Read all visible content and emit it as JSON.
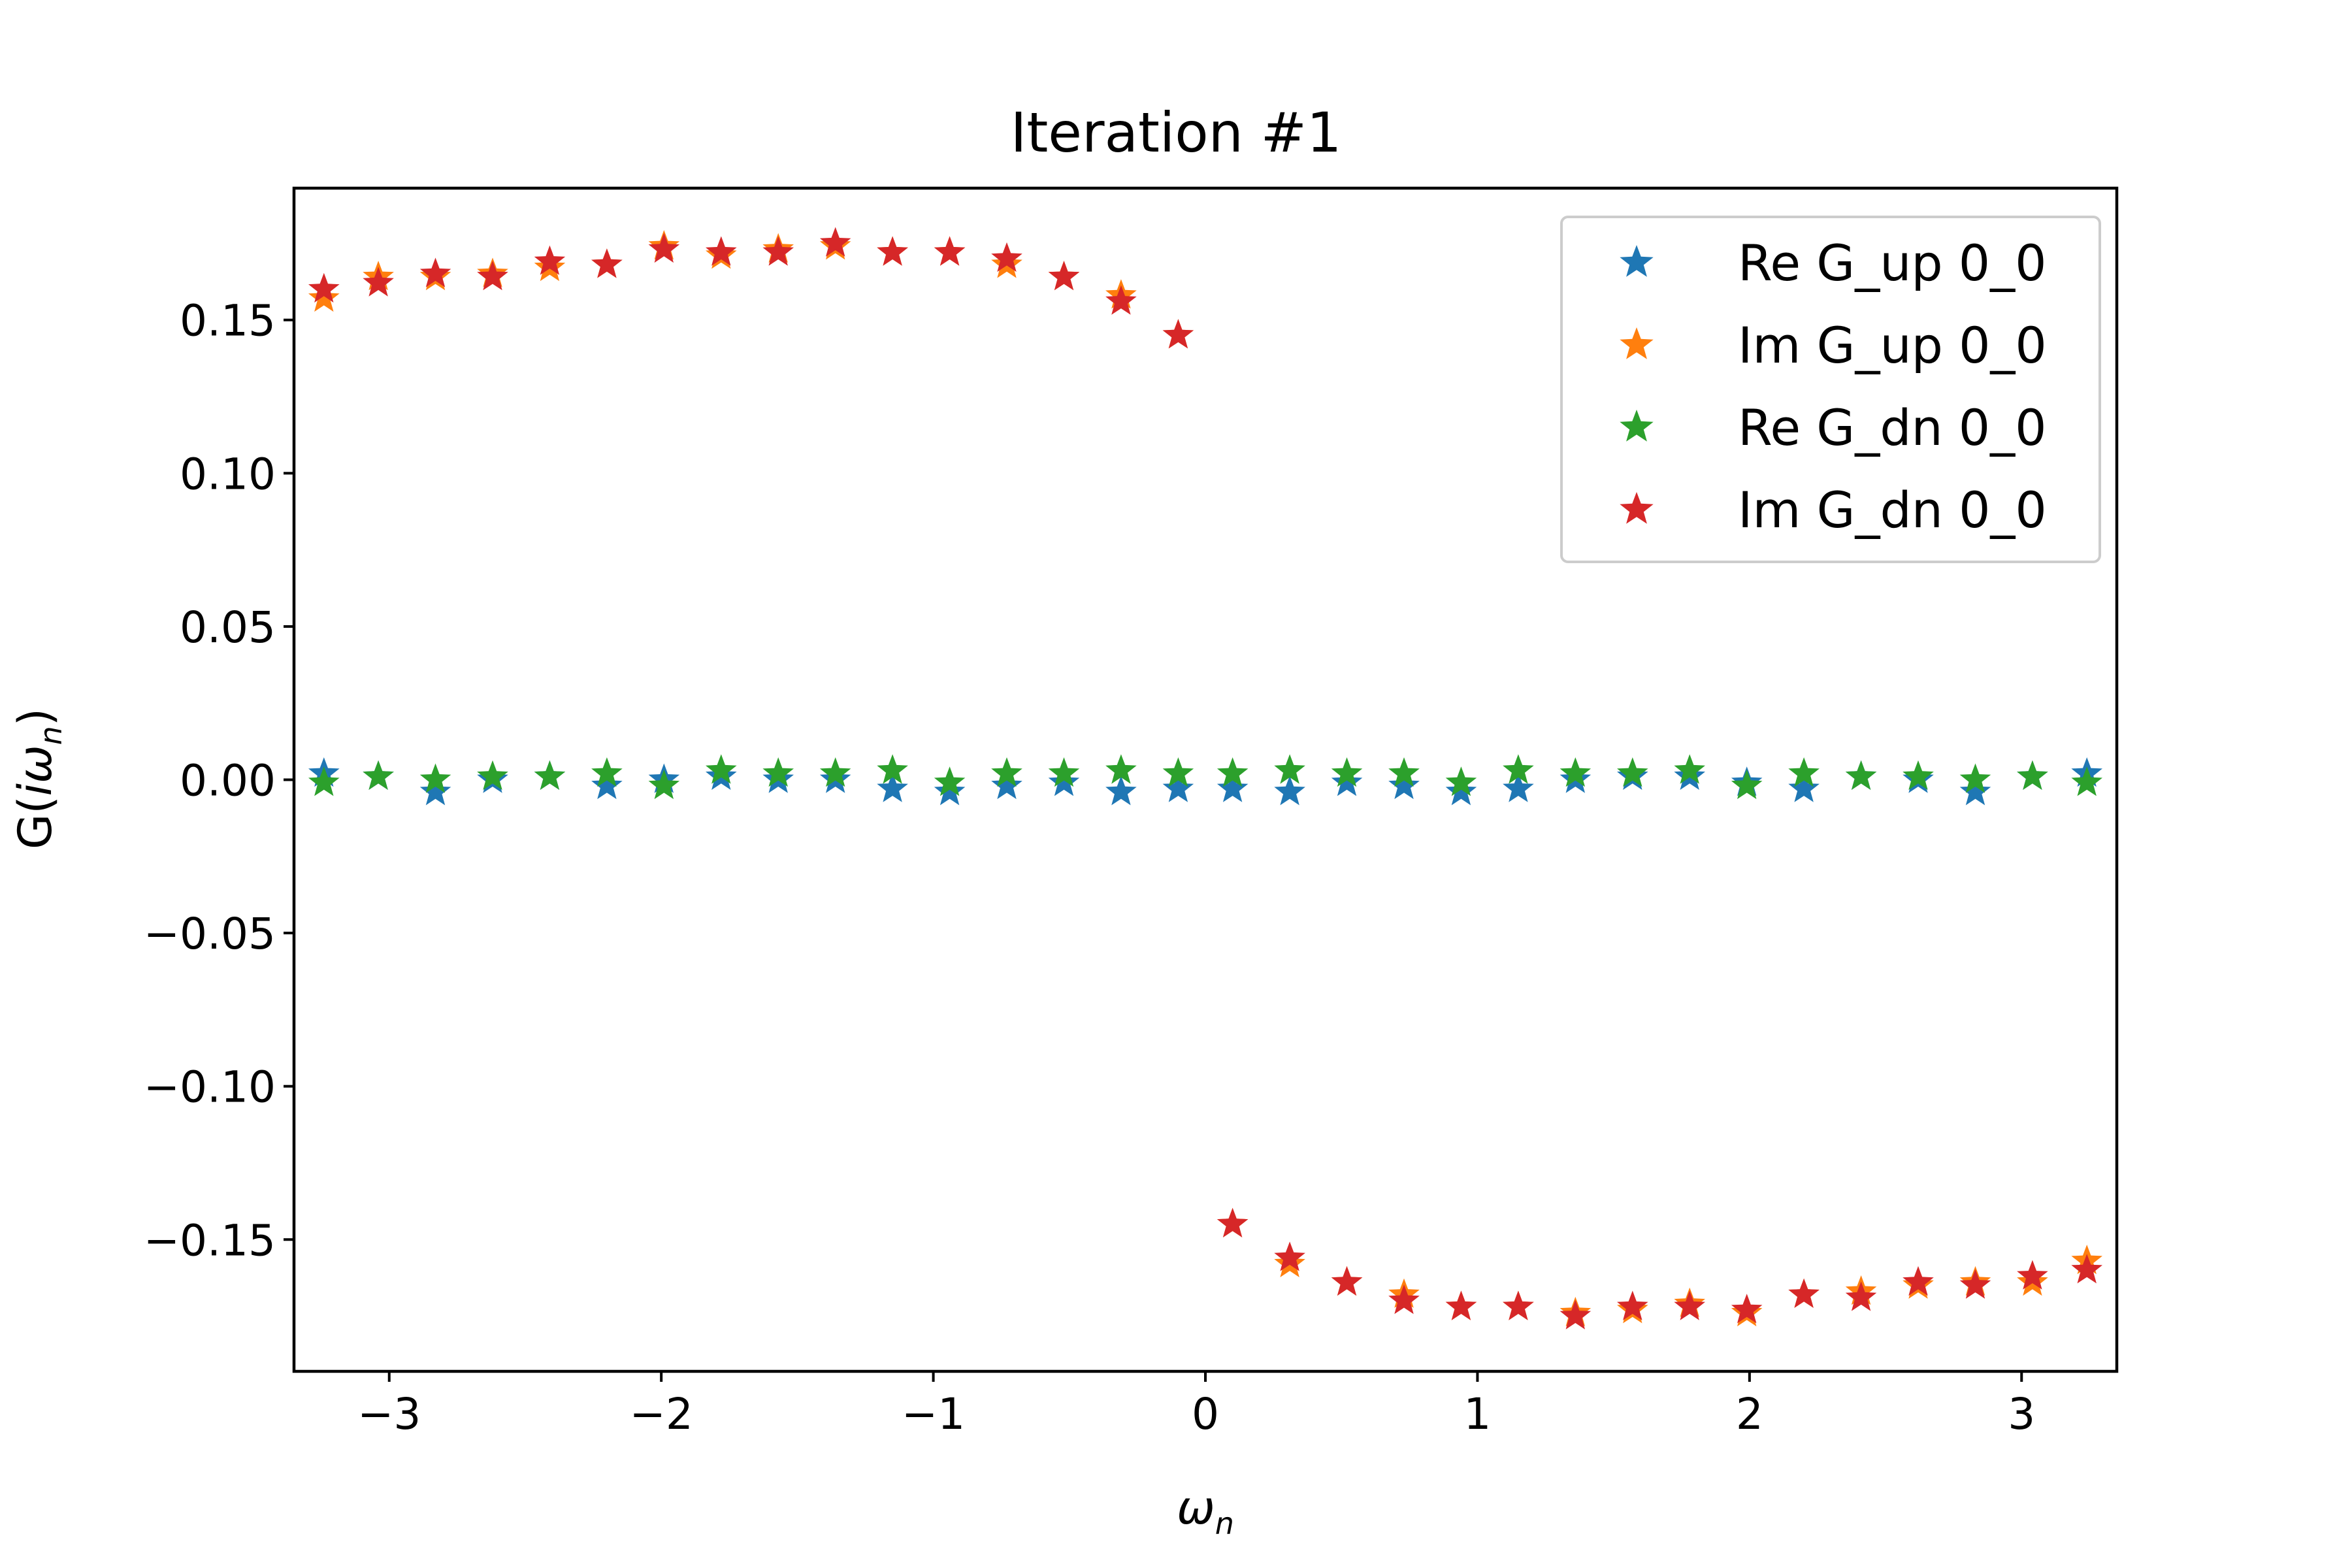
{
  "chart_data": {
    "type": "scatter",
    "title": "Iteration #1",
    "xlabel": "ω",
    "xlabel_sub": "n",
    "ylabel_prefix": "G(",
    "ylabel_mid": "iω",
    "ylabel_sub": "n",
    "ylabel_suffix": ")",
    "xlim": [
      -3.35,
      3.35
    ],
    "ylim": [
      -0.193,
      0.193
    ],
    "xticks": [
      -3,
      -2,
      -1,
      0,
      1,
      2,
      3
    ],
    "xtick_labels": [
      "−3",
      "−2",
      "−1",
      "0",
      "1",
      "2",
      "3"
    ],
    "yticks": [
      -0.15,
      -0.1,
      -0.05,
      0.0,
      0.05,
      0.1,
      0.15
    ],
    "ytick_labels": [
      "−0.15",
      "−0.10",
      "−0.05",
      "0.00",
      "0.05",
      "0.10",
      "0.15"
    ],
    "legend_position": "top-right",
    "marker": "star",
    "x": [
      -3.24,
      -3.04,
      -2.83,
      -2.62,
      -2.41,
      -2.2,
      -1.99,
      -1.78,
      -1.57,
      -1.36,
      -1.15,
      -0.94,
      -0.73,
      -0.52,
      -0.31,
      -0.1,
      0.1,
      0.31,
      0.52,
      0.73,
      0.94,
      1.15,
      1.36,
      1.57,
      1.78,
      1.99,
      2.2,
      2.41,
      2.62,
      2.83,
      3.04,
      3.24
    ],
    "series": [
      {
        "name": "Re G_up 0_0",
        "color": "#1f77b4",
        "values": [
          0.002,
          0.001,
          -0.004,
          0.0,
          0.001,
          -0.002,
          0.0,
          0.001,
          0.0,
          0.0,
          -0.003,
          -0.004,
          -0.002,
          -0.001,
          -0.004,
          -0.003,
          -0.003,
          -0.004,
          -0.001,
          -0.002,
          -0.004,
          -0.003,
          0.0,
          0.001,
          0.001,
          -0.001,
          -0.003,
          0.001,
          0.0,
          -0.004,
          0.001,
          0.002
        ]
      },
      {
        "name": "Im G_up 0_0",
        "color": "#ff7f0e",
        "values": [
          0.157,
          0.164,
          0.164,
          0.165,
          0.167,
          0.168,
          0.174,
          0.171,
          0.173,
          0.174,
          0.172,
          0.172,
          0.168,
          0.164,
          0.158,
          0.145,
          -0.145,
          -0.158,
          -0.164,
          -0.168,
          -0.172,
          -0.172,
          -0.174,
          -0.173,
          -0.171,
          -0.174,
          -0.168,
          -0.167,
          -0.165,
          -0.164,
          -0.164,
          -0.157
        ]
      },
      {
        "name": "Re G_dn 0_0",
        "color": "#2ca02c",
        "values": [
          -0.001,
          0.001,
          0.0,
          0.001,
          0.001,
          0.002,
          -0.002,
          0.003,
          0.002,
          0.002,
          0.003,
          -0.001,
          0.002,
          0.002,
          0.003,
          0.002,
          0.002,
          0.003,
          0.002,
          0.002,
          -0.001,
          0.003,
          0.002,
          0.002,
          0.003,
          -0.002,
          0.002,
          0.001,
          0.001,
          0.0,
          0.001,
          -0.001
        ]
      },
      {
        "name": "Im G_dn 0_0",
        "color": "#d62728",
        "values": [
          0.16,
          0.162,
          0.165,
          0.164,
          0.169,
          0.168,
          0.173,
          0.172,
          0.172,
          0.175,
          0.172,
          0.172,
          0.17,
          0.164,
          0.156,
          0.145,
          -0.145,
          -0.156,
          -0.164,
          -0.17,
          -0.172,
          -0.172,
          -0.175,
          -0.172,
          -0.172,
          -0.173,
          -0.168,
          -0.169,
          -0.164,
          -0.165,
          -0.162,
          -0.16
        ]
      }
    ]
  }
}
